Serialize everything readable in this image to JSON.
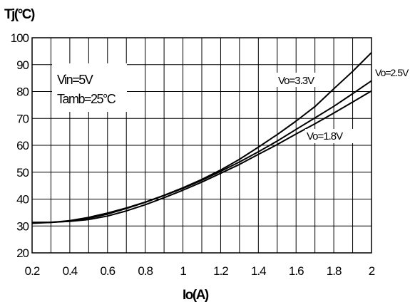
{
  "chart_data": {
    "type": "line",
    "ylabel": "Tj(°C)",
    "xlabel": "Io(A)",
    "xlim": [
      0.2,
      2.0
    ],
    "ylim": [
      20,
      100
    ],
    "x_ticks": [
      "0.2",
      "0.4",
      "0.6",
      "0.8",
      "1",
      "1.2",
      "1.4",
      "1.6",
      "1.8",
      "2"
    ],
    "y_ticks": [
      "20",
      "30",
      "40",
      "50",
      "60",
      "70",
      "80",
      "90",
      "100"
    ],
    "grid": true,
    "annotations": [
      "Vin=5V",
      "Tamb=25°C"
    ],
    "series": [
      {
        "name": "Vo=3.3V",
        "x": [
          0.2,
          0.3,
          0.4,
          0.5,
          0.6,
          0.7,
          0.8,
          0.9,
          1.0,
          1.1,
          1.2,
          1.3,
          1.4,
          1.5,
          1.6,
          1.7,
          1.8,
          1.9,
          2.0
        ],
        "y": [
          31.0,
          31.3,
          32.0,
          33.2,
          34.8,
          36.7,
          38.9,
          41.4,
          44.2,
          47.3,
          50.8,
          54.8,
          59.3,
          64.0,
          69.0,
          74.4,
          81.0,
          87.5,
          94.5
        ]
      },
      {
        "name": "Vo=2.5V",
        "x": [
          0.2,
          0.3,
          0.4,
          0.5,
          0.6,
          0.7,
          0.8,
          0.9,
          1.0,
          1.1,
          1.2,
          1.3,
          1.4,
          1.5,
          1.6,
          1.7,
          1.8,
          1.9,
          2.0
        ],
        "y": [
          31.2,
          31.3,
          31.8,
          32.9,
          34.4,
          36.5,
          38.8,
          41.3,
          44.0,
          47.0,
          50.3,
          53.8,
          57.6,
          61.6,
          65.9,
          70.2,
          74.5,
          79.2,
          84.0
        ]
      },
      {
        "name": "Vo=1.8V",
        "x": [
          0.2,
          0.3,
          0.4,
          0.5,
          0.6,
          0.7,
          0.8,
          0.9,
          1.0,
          1.1,
          1.2,
          1.3,
          1.4,
          1.5,
          1.6,
          1.7,
          1.8,
          1.9,
          2.0
        ],
        "y": [
          31.3,
          31.4,
          31.7,
          32.4,
          33.7,
          35.6,
          37.9,
          40.5,
          43.3,
          46.3,
          49.6,
          52.9,
          56.6,
          60.3,
          64.2,
          68.0,
          72.0,
          76.1,
          80.2
        ]
      }
    ]
  }
}
